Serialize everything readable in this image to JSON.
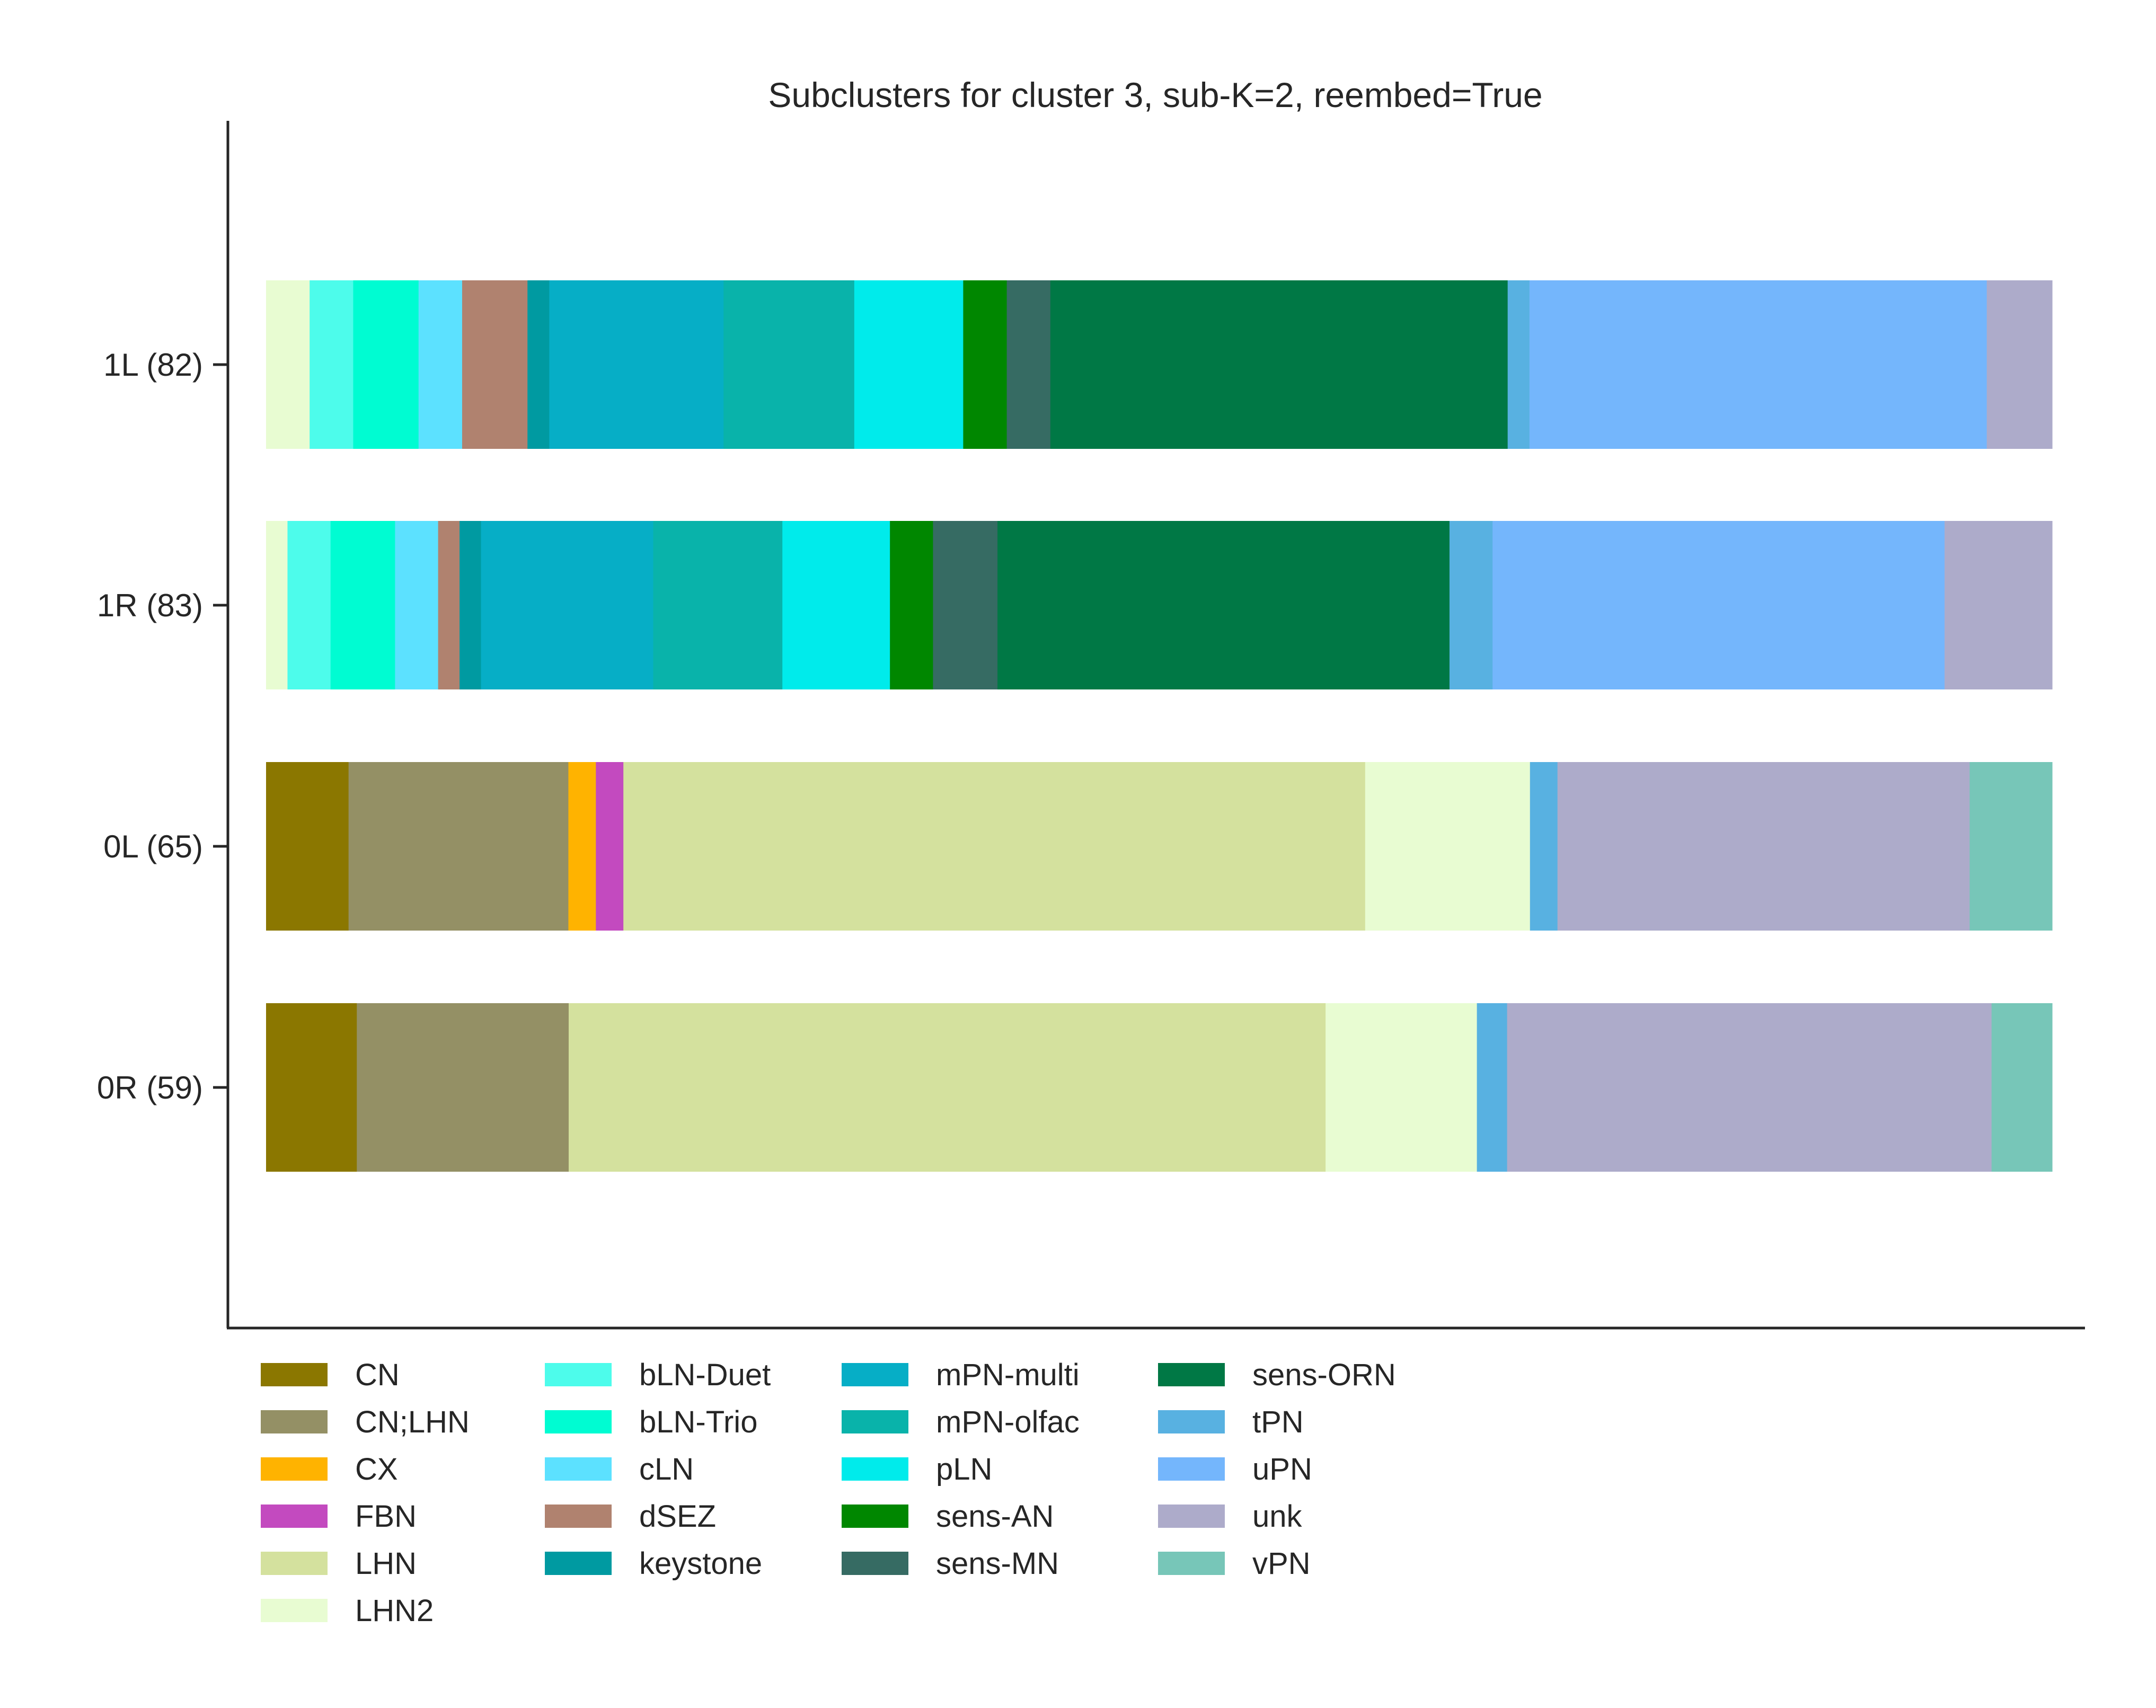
{
  "chart_data": {
    "type": "bar",
    "orientation": "horizontal",
    "stacked": true,
    "normalized": true,
    "title": "Subclusters for cluster 3, sub-K=2, reembed=True",
    "xlabel": "",
    "ylabel": "",
    "xlim": [
      0,
      1
    ],
    "grid": false,
    "legend_position": "bottom",
    "categories": [
      "1L (82)",
      "1R (83)",
      "0L (65)",
      "0R (59)"
    ],
    "classes": [
      {
        "name": "CN",
        "color": "#8B7700"
      },
      {
        "name": "CN;LHN",
        "color": "#949065"
      },
      {
        "name": "CX",
        "color": "#FFB300"
      },
      {
        "name": "FBN",
        "color": "#C34ABF"
      },
      {
        "name": "LHN",
        "color": "#D4E19E"
      },
      {
        "name": "LHN2",
        "color": "#E8FCD2"
      },
      {
        "name": "bLN-Duet",
        "color": "#4DFCEB"
      },
      {
        "name": "bLN-Trio",
        "color": "#00FCD2"
      },
      {
        "name": "cLN",
        "color": "#5CE1FF"
      },
      {
        "name": "dSEZ",
        "color": "#B0826F"
      },
      {
        "name": "keystone",
        "color": "#009AA1"
      },
      {
        "name": "mPN-multi",
        "color": "#06AEC6"
      },
      {
        "name": "mPN-olfac",
        "color": "#09B3AA"
      },
      {
        "name": "pLN",
        "color": "#00EBEB"
      },
      {
        "name": "sens-AN",
        "color": "#008700"
      },
      {
        "name": "sens-MN",
        "color": "#366B63"
      },
      {
        "name": "sens-ORN",
        "color": "#007845"
      },
      {
        "name": "tPN",
        "color": "#58B1E1"
      },
      {
        "name": "uPN",
        "color": "#74B6FC"
      },
      {
        "name": "unk",
        "color": "#ADABCA"
      },
      {
        "name": "vPN",
        "color": "#77C6B8"
      }
    ],
    "segments": [
      {
        "category": "1L (82)",
        "values": [
          {
            "class": "LHN2",
            "value": 0.0244
          },
          {
            "class": "bLN-Duet",
            "value": 0.0244
          },
          {
            "class": "bLN-Trio",
            "value": 0.0366
          },
          {
            "class": "cLN",
            "value": 0.0244
          },
          {
            "class": "dSEZ",
            "value": 0.0366
          },
          {
            "class": "keystone",
            "value": 0.0122
          },
          {
            "class": "mPN-multi",
            "value": 0.0976
          },
          {
            "class": "mPN-olfac",
            "value": 0.0732
          },
          {
            "class": "pLN",
            "value": 0.061
          },
          {
            "class": "sens-AN",
            "value": 0.0244
          },
          {
            "class": "sens-MN",
            "value": 0.0244
          },
          {
            "class": "sens-ORN",
            "value": 0.2561
          },
          {
            "class": "tPN",
            "value": 0.0122
          },
          {
            "class": "uPN",
            "value": 0.2561
          },
          {
            "class": "unk",
            "value": 0.0366
          }
        ]
      },
      {
        "category": "1R (83)",
        "values": [
          {
            "class": "LHN2",
            "value": 0.012
          },
          {
            "class": "bLN-Duet",
            "value": 0.0241
          },
          {
            "class": "bLN-Trio",
            "value": 0.0361
          },
          {
            "class": "cLN",
            "value": 0.0241
          },
          {
            "class": "dSEZ",
            "value": 0.012
          },
          {
            "class": "keystone",
            "value": 0.012
          },
          {
            "class": "mPN-multi",
            "value": 0.0964
          },
          {
            "class": "mPN-olfac",
            "value": 0.0723
          },
          {
            "class": "pLN",
            "value": 0.0602
          },
          {
            "class": "sens-AN",
            "value": 0.0241
          },
          {
            "class": "sens-MN",
            "value": 0.0361
          },
          {
            "class": "sens-ORN",
            "value": 0.253
          },
          {
            "class": "tPN",
            "value": 0.0241
          },
          {
            "class": "uPN",
            "value": 0.253
          },
          {
            "class": "unk",
            "value": 0.0602
          }
        ]
      },
      {
        "category": "0L (65)",
        "values": [
          {
            "class": "CN",
            "value": 0.0462
          },
          {
            "class": "CN;LHN",
            "value": 0.1231
          },
          {
            "class": "CX",
            "value": 0.0154
          },
          {
            "class": "FBN",
            "value": 0.0154
          },
          {
            "class": "LHN",
            "value": 0.4154
          },
          {
            "class": "LHN2",
            "value": 0.0923
          },
          {
            "class": "tPN",
            "value": 0.0154
          },
          {
            "class": "unk",
            "value": 0.2308
          },
          {
            "class": "vPN",
            "value": 0.0462
          }
        ]
      },
      {
        "category": "0R (59)",
        "values": [
          {
            "class": "CN",
            "value": 0.0508
          },
          {
            "class": "CN;LHN",
            "value": 0.1186
          },
          {
            "class": "LHN",
            "value": 0.4237
          },
          {
            "class": "LHN2",
            "value": 0.0847
          },
          {
            "class": "tPN",
            "value": 0.0169
          },
          {
            "class": "unk",
            "value": 0.2712
          },
          {
            "class": "vPN",
            "value": 0.0339
          }
        ]
      }
    ]
  }
}
